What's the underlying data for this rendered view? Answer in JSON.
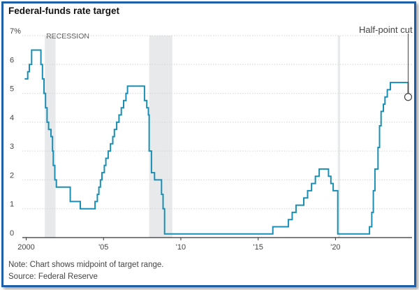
{
  "chart_data": {
    "type": "line",
    "title": "Federal-funds rate target",
    "y_unit_label": "7%",
    "y_tick_labels": [
      "0",
      "1",
      "2",
      "3",
      "4",
      "5",
      "6",
      "7%"
    ],
    "x_tick_labels": [
      "2000",
      "'05",
      "'10",
      "'15",
      "'20"
    ],
    "x_ticks": [
      2000,
      2005,
      2010,
      2015,
      2020
    ],
    "xlim": [
      1999.75,
      2024.95
    ],
    "ylim": [
      0,
      7
    ],
    "grid": true,
    "recession_label": "RECESSION",
    "recessions": [
      [
        2001.2,
        2001.9
      ],
      [
        2007.95,
        2009.45
      ],
      [
        2020.15,
        2020.3
      ]
    ],
    "annotation": {
      "text": "Half-point cut",
      "x": 2024.7,
      "y": 4.875
    },
    "series": [
      {
        "name": "",
        "color": "#1a8fb3",
        "points": [
          [
            1999.9,
            5.5
          ],
          [
            2000.1,
            5.75
          ],
          [
            2000.2,
            6.0
          ],
          [
            2000.35,
            6.5
          ],
          [
            2000.95,
            6.0
          ],
          [
            2001.05,
            5.5
          ],
          [
            2001.15,
            5.0
          ],
          [
            2001.25,
            4.5
          ],
          [
            2001.35,
            4.0
          ],
          [
            2001.45,
            3.75
          ],
          [
            2001.6,
            3.5
          ],
          [
            2001.7,
            3.0
          ],
          [
            2001.75,
            2.5
          ],
          [
            2001.85,
            2.0
          ],
          [
            2001.95,
            1.75
          ],
          [
            2002.85,
            1.25
          ],
          [
            2003.5,
            1.0
          ],
          [
            2004.45,
            1.25
          ],
          [
            2004.6,
            1.5
          ],
          [
            2004.7,
            1.75
          ],
          [
            2004.8,
            2.0
          ],
          [
            2004.9,
            2.25
          ],
          [
            2005.05,
            2.5
          ],
          [
            2005.15,
            2.75
          ],
          [
            2005.3,
            3.0
          ],
          [
            2005.45,
            3.25
          ],
          [
            2005.6,
            3.5
          ],
          [
            2005.7,
            3.75
          ],
          [
            2005.85,
            4.0
          ],
          [
            2006.0,
            4.25
          ],
          [
            2006.15,
            4.5
          ],
          [
            2006.3,
            4.75
          ],
          [
            2006.45,
            5.0
          ],
          [
            2006.55,
            5.25
          ],
          [
            2007.65,
            4.75
          ],
          [
            2007.8,
            4.5
          ],
          [
            2007.9,
            4.25
          ],
          [
            2007.95,
            3.0
          ],
          [
            2008.1,
            2.25
          ],
          [
            2008.3,
            2.0
          ],
          [
            2008.75,
            1.5
          ],
          [
            2008.85,
            1.0
          ],
          [
            2008.95,
            0.125
          ],
          [
            2015.95,
            0.375
          ],
          [
            2016.95,
            0.625
          ],
          [
            2017.2,
            0.875
          ],
          [
            2017.45,
            1.125
          ],
          [
            2017.95,
            1.375
          ],
          [
            2018.2,
            1.625
          ],
          [
            2018.45,
            1.875
          ],
          [
            2018.7,
            2.125
          ],
          [
            2018.95,
            2.375
          ],
          [
            2019.55,
            2.125
          ],
          [
            2019.7,
            1.875
          ],
          [
            2019.85,
            1.625
          ],
          [
            2020.15,
            0.125
          ],
          [
            2022.2,
            0.375
          ],
          [
            2022.35,
            0.875
          ],
          [
            2022.45,
            1.625
          ],
          [
            2022.55,
            2.375
          ],
          [
            2022.75,
            3.125
          ],
          [
            2022.85,
            3.875
          ],
          [
            2022.95,
            4.375
          ],
          [
            2023.1,
            4.625
          ],
          [
            2023.2,
            4.875
          ],
          [
            2023.35,
            5.125
          ],
          [
            2023.55,
            5.375
          ],
          [
            2024.7,
            4.875
          ]
        ]
      }
    ]
  },
  "notes": {
    "line1": "Note: Chart shows midpoint of target range.",
    "line2": "Source: Federal Reserve"
  }
}
